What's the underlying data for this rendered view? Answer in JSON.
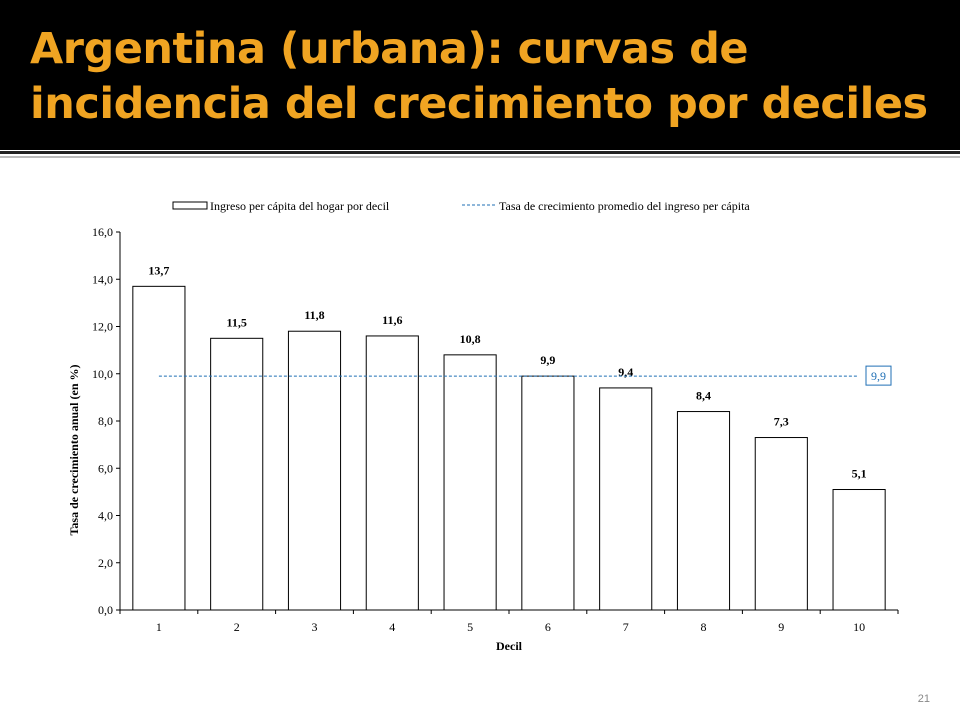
{
  "slide": {
    "title": "Argentina (urbana): curvas de incidencia del crecimiento por deciles",
    "number": "21"
  },
  "colors": {
    "title_background": "#000000",
    "title_text": "#f0a422",
    "bar_fill": "#ffffff",
    "bar_stroke": "#000000",
    "average_line": "#1f6fb5"
  },
  "chart_data": {
    "type": "bar",
    "categories": [
      "1",
      "2",
      "3",
      "4",
      "5",
      "6",
      "7",
      "8",
      "9",
      "10"
    ],
    "series": [
      {
        "name": "Ingreso per cápita del hogar por decil",
        "values": [
          13.7,
          11.5,
          11.8,
          11.6,
          10.8,
          9.9,
          9.4,
          8.4,
          7.3,
          5.1
        ],
        "data_labels": [
          "13,7",
          "11,5",
          "11,8",
          "11,6",
          "10,8",
          "9,9",
          "9,4",
          "8,4",
          "7,3",
          "5,1"
        ]
      }
    ],
    "reference_line": {
      "name": "Tasa de crecimiento promedio del ingreso per cápita",
      "value": 9.9,
      "label": "9,9",
      "style": "dashed"
    },
    "xlabel": "Decil",
    "ylabel": "Tasa de crecimiento anual (en %)",
    "ylim": [
      0,
      16
    ],
    "yticks": [
      0,
      2,
      4,
      6,
      8,
      10,
      12,
      14,
      16
    ],
    "ytick_labels": [
      "0,0",
      "2,0",
      "4,0",
      "6,0",
      "8,0",
      "10,0",
      "12,0",
      "14,0",
      "16,0"
    ],
    "grid": false,
    "legend_position": "top"
  }
}
